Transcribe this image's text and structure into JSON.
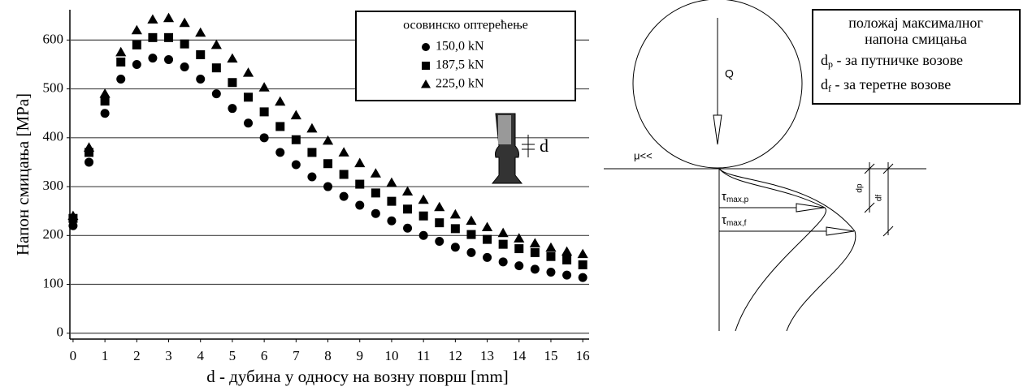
{
  "chart_data": {
    "type": "scatter",
    "y_label": "Напон смицања [MPa]",
    "x_label": "d - дубина у односу на возну површ [mm]",
    "legend_title": "осовинско оптерећење",
    "legend_position": "upper right",
    "annotation": "d",
    "grid": true,
    "xlim": [
      -0.1,
      16.2
    ],
    "ylim": [
      -12,
      662
    ],
    "xticks": [
      0,
      1,
      2,
      3,
      4,
      5,
      6,
      7,
      8,
      9,
      10,
      11,
      12,
      13,
      14,
      15,
      16
    ],
    "yticks": [
      0,
      100,
      200,
      300,
      400,
      500,
      600
    ],
    "x": [
      0,
      0.5,
      1,
      1.5,
      2,
      2.5,
      3,
      3.5,
      4,
      4.5,
      5,
      5.5,
      6,
      6.5,
      7,
      7.5,
      8,
      8.5,
      9,
      9.5,
      10,
      10.5,
      11,
      11.5,
      12,
      12.5,
      13,
      13.5,
      14,
      14.5,
      15,
      15.5,
      16
    ],
    "series": [
      {
        "name": "150,0 kN",
        "color": "#000000",
        "marker": "circle",
        "values": [
          220,
          350,
          450,
          520,
          550,
          563,
          560,
          545,
          520,
          490,
          460,
          430,
          400,
          370,
          345,
          320,
          300,
          280,
          262,
          245,
          230,
          215,
          200,
          188,
          176,
          165,
          155,
          146,
          138,
          131,
          125,
          119,
          114
        ]
      },
      {
        "name": "187,5 kN",
        "color": "#000000",
        "marker": "square",
        "values": [
          235,
          370,
          475,
          555,
          590,
          605,
          605,
          592,
          570,
          543,
          513,
          483,
          453,
          423,
          396,
          370,
          347,
          325,
          305,
          287,
          270,
          254,
          240,
          226,
          214,
          202,
          192,
          182,
          173,
          165,
          157,
          150,
          140
        ]
      },
      {
        "name": "225,0 kN",
        "color": "#000000",
        "marker": "triangle",
        "values": [
          240,
          380,
          490,
          575,
          620,
          642,
          645,
          635,
          615,
          590,
          562,
          533,
          503,
          474,
          446,
          419,
          394,
          370,
          348,
          327,
          308,
          290,
          273,
          258,
          243,
          230,
          217,
          205,
          194,
          184,
          175,
          167,
          162
        ]
      }
    ]
  },
  "diagram": {
    "box_title_1": "положај максималног",
    "box_title_2": "напона смицања",
    "dp_symbol": "d",
    "dp_sub": "p",
    "dp_text": " - за путничке возове",
    "df_symbol": "d",
    "df_sub": "f",
    "df_text": " - за теретне возове",
    "load": "Q",
    "friction": "μ<<",
    "tau_p_symbol": "τ",
    "tau_p_sub": "max,p",
    "tau_f_symbol": "τ",
    "tau_f_sub": "max,f",
    "dim_p": "dp",
    "dim_f": "df"
  }
}
